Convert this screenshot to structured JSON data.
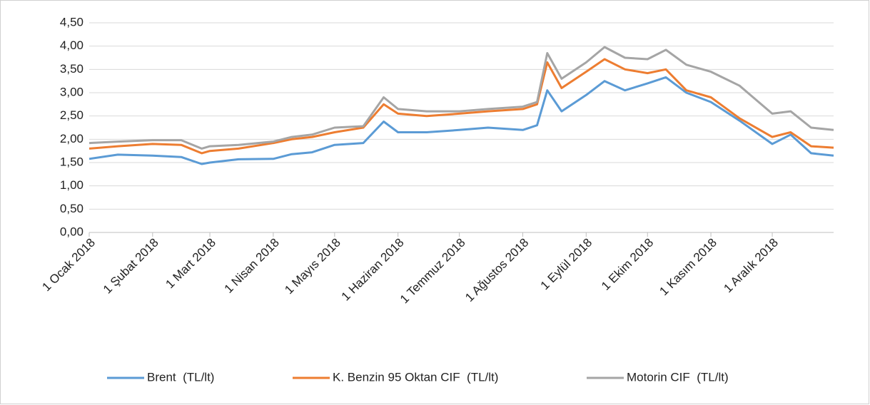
{
  "chart_data": {
    "type": "line",
    "x": [
      "2018-01-01",
      "2018-01-15",
      "2018-02-01",
      "2018-02-15",
      "2018-02-25",
      "2018-03-01",
      "2018-03-15",
      "2018-04-01",
      "2018-04-10",
      "2018-04-20",
      "2018-05-01",
      "2018-05-15",
      "2018-05-25",
      "2018-06-01",
      "2018-06-15",
      "2018-07-01",
      "2018-07-15",
      "2018-08-01",
      "2018-08-08",
      "2018-08-13",
      "2018-08-20",
      "2018-09-01",
      "2018-09-10",
      "2018-09-20",
      "2018-10-01",
      "2018-10-10",
      "2018-10-20",
      "2018-11-01",
      "2018-11-15",
      "2018-12-01",
      "2018-12-10",
      "2018-12-20",
      "2018-12-31"
    ],
    "series": [
      {
        "name": "Brent  (TL/lt)",
        "color": "#5b9bd5",
        "values": [
          1.58,
          1.67,
          1.65,
          1.62,
          1.47,
          1.5,
          1.57,
          1.58,
          1.68,
          1.72,
          1.88,
          1.92,
          2.38,
          2.15,
          2.15,
          2.2,
          2.25,
          2.2,
          2.3,
          3.05,
          2.6,
          2.95,
          3.25,
          3.05,
          3.2,
          3.33,
          3.0,
          2.8,
          2.4,
          1.9,
          2.1,
          1.7,
          1.65
        ]
      },
      {
        "name": "K. Benzin 95 Oktan CIF  (TL/lt)",
        "color": "#ed7d31",
        "values": [
          1.8,
          1.85,
          1.9,
          1.88,
          1.7,
          1.75,
          1.8,
          1.92,
          2.0,
          2.05,
          2.15,
          2.25,
          2.75,
          2.55,
          2.5,
          2.55,
          2.6,
          2.65,
          2.75,
          3.65,
          3.1,
          3.45,
          3.72,
          3.5,
          3.42,
          3.5,
          3.05,
          2.9,
          2.45,
          2.05,
          2.15,
          1.85,
          1.82
        ]
      },
      {
        "name": "Motorin CIF  (TL/lt)",
        "color": "#a5a5a5",
        "values": [
          1.92,
          1.95,
          1.98,
          1.98,
          1.8,
          1.85,
          1.88,
          1.95,
          2.05,
          2.1,
          2.25,
          2.28,
          2.9,
          2.65,
          2.6,
          2.6,
          2.65,
          2.7,
          2.8,
          3.85,
          3.3,
          3.65,
          3.98,
          3.75,
          3.72,
          3.92,
          3.6,
          3.45,
          3.15,
          2.55,
          2.6,
          2.25,
          2.2
        ]
      }
    ],
    "xlim": [
      "2018-01-01",
      "2018-12-31"
    ],
    "xticks": [
      {
        "value": "2018-01-01",
        "label": "1 Ocak 2018"
      },
      {
        "value": "2018-02-01",
        "label": "1 Şubat 2018"
      },
      {
        "value": "2018-03-01",
        "label": "1 Mart 2018"
      },
      {
        "value": "2018-04-01",
        "label": "1 Nisan 2018"
      },
      {
        "value": "2018-05-01",
        "label": "1 Mayıs 2018"
      },
      {
        "value": "2018-06-01",
        "label": "1 Haziran 2018"
      },
      {
        "value": "2018-07-01",
        "label": "1 Temmuz 2018"
      },
      {
        "value": "2018-08-01",
        "label": "1 Ağustos 2018"
      },
      {
        "value": "2018-09-01",
        "label": "1 Eylül 2018"
      },
      {
        "value": "2018-10-01",
        "label": "1 Ekim 2018"
      },
      {
        "value": "2018-11-01",
        "label": "1 Kasım 2018"
      },
      {
        "value": "2018-12-01",
        "label": "1 Aralık 2018"
      }
    ],
    "ylim": [
      0,
      4.5
    ],
    "yticks": [
      {
        "value": 0,
        "label": "0,00"
      },
      {
        "value": 0.5,
        "label": "0,50"
      },
      {
        "value": 1,
        "label": "1,00"
      },
      {
        "value": 1.5,
        "label": "1,50"
      },
      {
        "value": 2,
        "label": "2,00"
      },
      {
        "value": 2.5,
        "label": "2,50"
      },
      {
        "value": 3,
        "label": "3,00"
      },
      {
        "value": 3.5,
        "label": "3,50"
      },
      {
        "value": 4,
        "label": "4,00"
      },
      {
        "value": 4.5,
        "label": "4,50"
      }
    ],
    "grid": true,
    "legend": "bottom"
  }
}
